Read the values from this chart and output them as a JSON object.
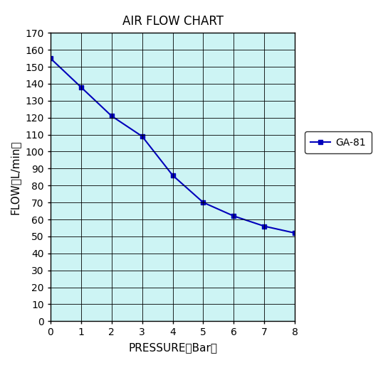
{
  "title": "AIR FLOW CHART",
  "xlabel": "PRESSURE（Bar）",
  "ylabel": "FLOW（L/min）",
  "x": [
    0,
    1,
    2,
    3,
    4,
    5,
    6,
    7,
    8
  ],
  "y": [
    155,
    138,
    121,
    109,
    86,
    70,
    62,
    56,
    52
  ],
  "line_color": "#0000bb",
  "marker": "s",
  "marker_size": 5,
  "legend_label": "GA-81",
  "xlim": [
    0,
    8
  ],
  "ylim": [
    0,
    170
  ],
  "xticks": [
    0,
    1,
    2,
    3,
    4,
    5,
    6,
    7,
    8
  ],
  "yticks": [
    0,
    10,
    20,
    30,
    40,
    50,
    60,
    70,
    80,
    90,
    100,
    110,
    120,
    130,
    140,
    150,
    160,
    170
  ],
  "bg_color": "#cdf4f4",
  "grid_color": "#000000",
  "title_fontsize": 12,
  "label_fontsize": 11,
  "tick_fontsize": 10,
  "fig_width": 5.45,
  "fig_height": 5.14
}
